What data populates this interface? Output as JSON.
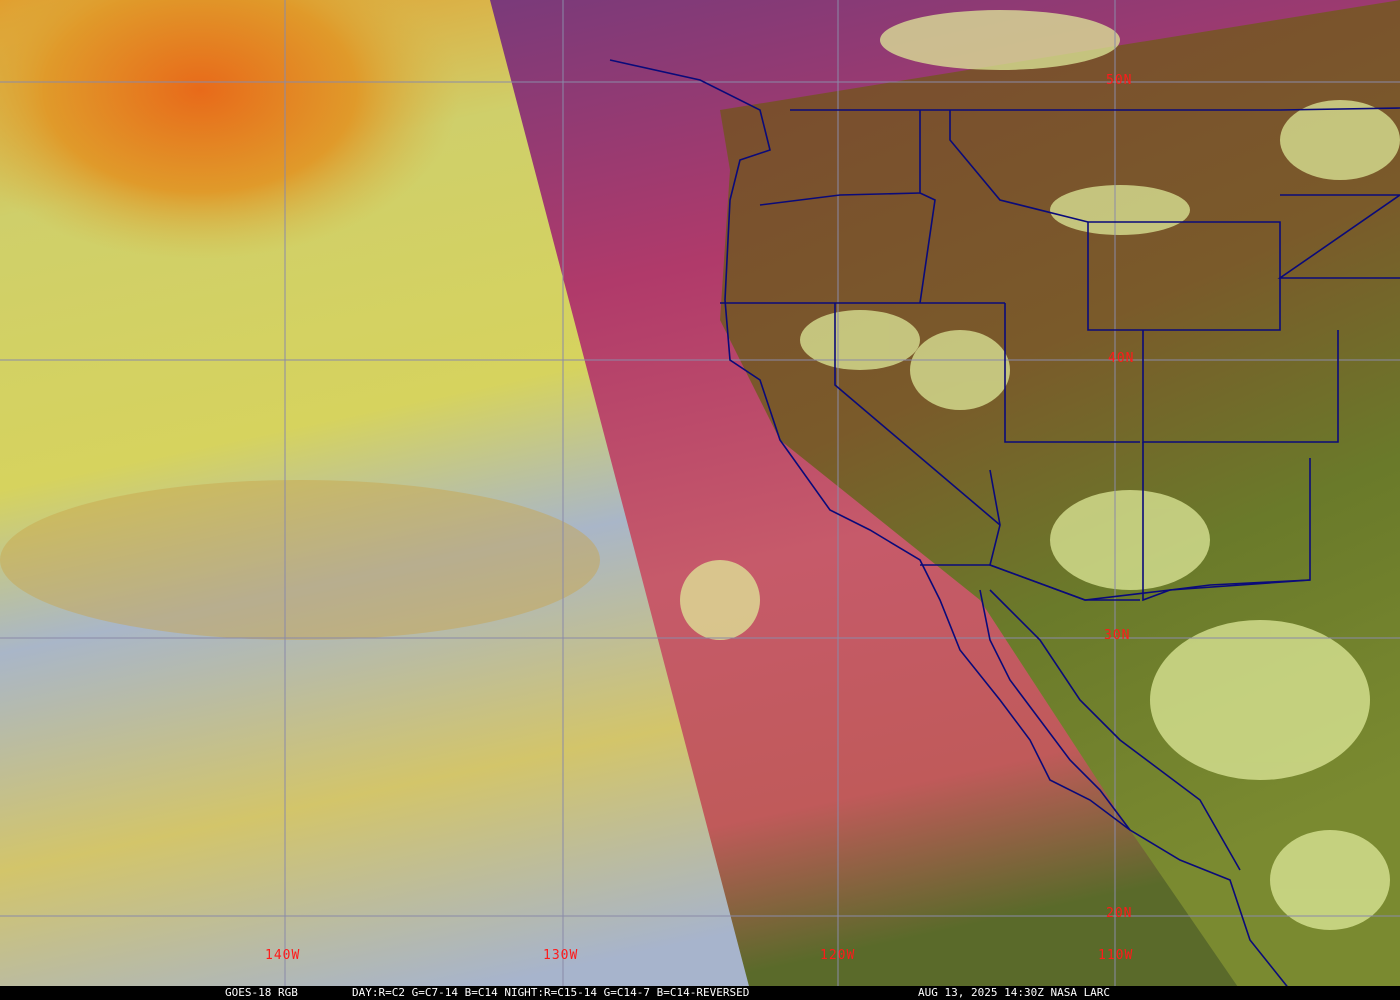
{
  "map": {
    "lat_labels": [
      "50N",
      "40N",
      "30N",
      "20N"
    ],
    "lon_labels": [
      "140W",
      "130W",
      "120W",
      "110W"
    ],
    "colors": {
      "grid": "#8a8aa8",
      "borders": "#0a0a7a",
      "labels": "#ff1a1a"
    }
  },
  "footer": {
    "satellite": "GOES-18 RGB",
    "product": "DAY:R=C2 G=C7-14 B=C14 NIGHT:R=C15-14 G=C14-7 B=C14-REVERSED",
    "timestamp": "AUG 13, 2025 14:30Z NASA LARC"
  }
}
